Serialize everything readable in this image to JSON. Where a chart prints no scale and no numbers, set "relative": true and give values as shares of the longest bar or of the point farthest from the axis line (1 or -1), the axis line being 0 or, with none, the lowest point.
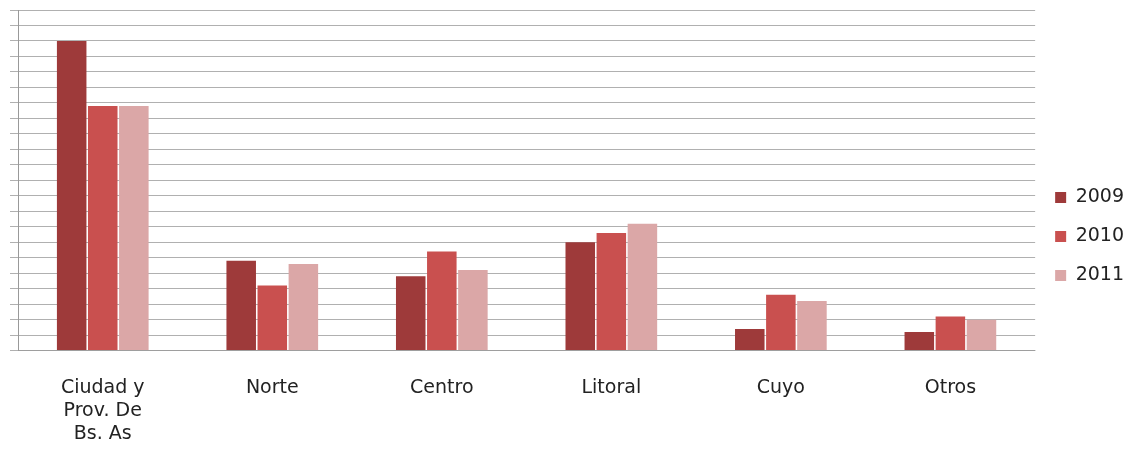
{
  "chart_data": {
    "type": "bar",
    "relative": true,
    "grid": "y",
    "legend": "right",
    "categories": [
      "Ciudad y Prov. De Bs. As",
      "Norte",
      "Centro",
      "Litoral",
      "Cuyo",
      "Otros"
    ],
    "series": [
      {
        "name": "2009",
        "color": "#9e3a3a",
        "values": [
          1,
          0.29,
          0.24,
          0.35,
          0.07,
          0.06
        ]
      },
      {
        "name": "2010",
        "color": "#c9504f",
        "values": [
          0.79,
          0.21,
          0.32,
          0.38,
          0.18,
          0.11
        ]
      },
      {
        "name": "2011",
        "color": "#dba7a7",
        "values": [
          0.79,
          0.28,
          0.26,
          0.41,
          0.16,
          0.1
        ]
      }
    ]
  }
}
